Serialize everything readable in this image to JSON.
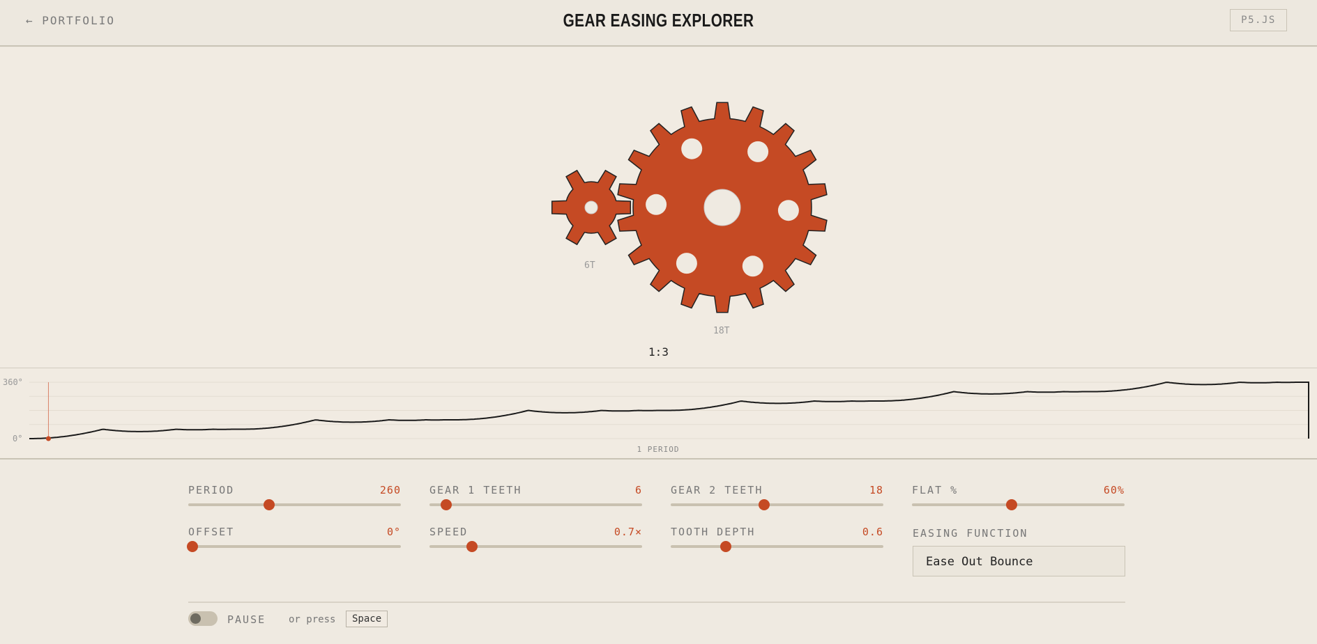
{
  "header": {
    "back_label": "← PORTFOLIO",
    "title": "GEAR EASING EXPLORER",
    "p5_label": "P5.JS"
  },
  "colors": {
    "accent": "#c54a24",
    "background": "#efeae1",
    "stroke": "#222222"
  },
  "gears": [
    {
      "label": "6T",
      "teeth": 6,
      "holes": 0
    },
    {
      "label": "18T",
      "teeth": 18,
      "holes": 6
    }
  ],
  "ratio": "1:3",
  "chart_data": {
    "type": "line",
    "y_tick_labels": [
      "360°",
      "0°"
    ],
    "ylim": [
      0,
      360
    ],
    "xlabel": "1 PERIOD",
    "steps": 6,
    "step_degrees": 60,
    "easing": "easeOutBounce",
    "playhead_fraction": 0.015,
    "grid": true
  },
  "controls": [
    {
      "label": "PERIOD",
      "value": "260",
      "fraction": 0.38
    },
    {
      "label": "GEAR 1 TEETH",
      "value": "6",
      "fraction": 0.08
    },
    {
      "label": "GEAR 2 TEETH",
      "value": "18",
      "fraction": 0.44
    },
    {
      "label": "FLAT %",
      "value": "60%",
      "fraction": 0.47
    },
    {
      "label": "OFFSET",
      "value": "0°",
      "fraction": 0.02
    },
    {
      "label": "SPEED",
      "value": "0.7×",
      "fraction": 0.2
    },
    {
      "label": "TOOTH DEPTH",
      "value": "0.6",
      "fraction": 0.26
    }
  ],
  "easing": {
    "label": "EASING FUNCTION",
    "value": "Ease Out Bounce"
  },
  "footer": {
    "pause_label": "PAUSE",
    "hint": "or press",
    "key": "Space"
  }
}
